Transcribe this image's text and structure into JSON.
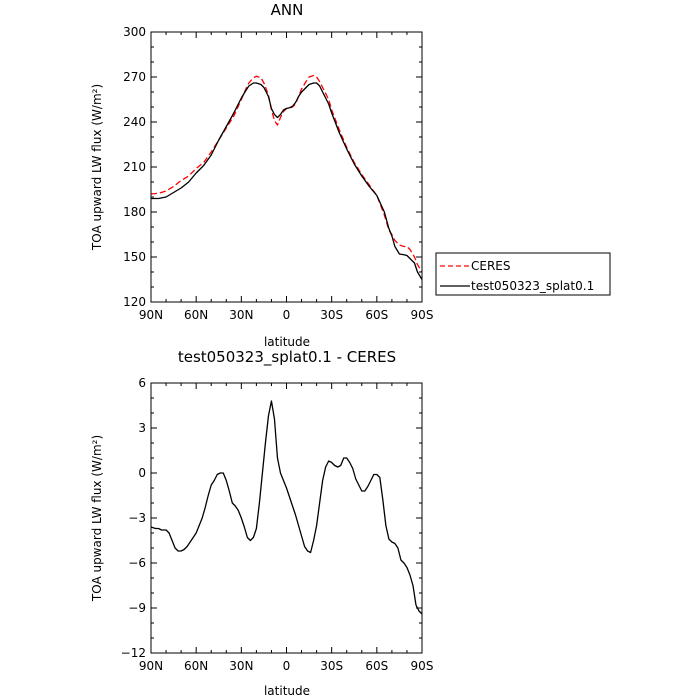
{
  "chart_data": [
    {
      "type": "line",
      "title": "ANN",
      "xlabel": "latitude",
      "ylabel": "TOA upward LW flux (W/m²)",
      "xlim": [
        90,
        -90
      ],
      "ylim": [
        120,
        300
      ],
      "yticks": [
        120,
        150,
        180,
        210,
        240,
        270,
        300
      ],
      "ytick_labels": [
        "120",
        "150",
        "180",
        "210",
        "240",
        "270",
        "300"
      ],
      "xticks": [
        90,
        60,
        30,
        0,
        -30,
        -60,
        -90
      ],
      "xtick_labels": [
        "90N",
        "60N",
        "30N",
        "0",
        "30S",
        "60S",
        "90S"
      ],
      "legend_position": "right",
      "series": [
        {
          "name": "CERES",
          "color": "#ff0000",
          "dash": "dashed",
          "x": [
            90,
            85,
            80,
            75,
            70,
            65,
            60,
            55,
            50,
            45,
            40,
            35,
            30,
            27,
            25,
            22,
            20,
            17,
            15,
            12,
            10,
            8,
            6,
            4,
            2,
            0,
            -2,
            -4,
            -6,
            -8,
            -10,
            -13,
            -15,
            -18,
            -20,
            -22,
            -25,
            -28,
            -30,
            -35,
            -40,
            -45,
            -50,
            -55,
            -60,
            -65,
            -68,
            -70,
            -72,
            -75,
            -78,
            -80,
            -82,
            -85,
            -87,
            -90
          ],
          "y": [
            192,
            192.5,
            194,
            197,
            201,
            204,
            209,
            213,
            220,
            228,
            236,
            244,
            255,
            262,
            266,
            269.5,
            270.5,
            269.5,
            266,
            258,
            248,
            241,
            238,
            243,
            247,
            249,
            249.5,
            250,
            252,
            257,
            262,
            267,
            270,
            271,
            270,
            267,
            261,
            255,
            248,
            235,
            223,
            213,
            205,
            198,
            191,
            178,
            168,
            165,
            161,
            158,
            157,
            157,
            155,
            150,
            145,
            140
          ]
        },
        {
          "name": "test050323_splat0.1",
          "color": "#000000",
          "dash": "solid",
          "x": [
            90,
            85,
            80,
            75,
            70,
            65,
            60,
            55,
            50,
            45,
            40,
            35,
            30,
            27,
            25,
            22,
            20,
            17,
            15,
            12,
            10,
            8,
            6,
            4,
            2,
            0,
            -2,
            -4,
            -6,
            -8,
            -10,
            -13,
            -15,
            -18,
            -20,
            -22,
            -25,
            -28,
            -30,
            -35,
            -40,
            -45,
            -50,
            -55,
            -60,
            -65,
            -68,
            -70,
            -72,
            -75,
            -78,
            -80,
            -82,
            -85,
            -87,
            -90
          ],
          "y": [
            189,
            189,
            190,
            193,
            196,
            200,
            206,
            211,
            218,
            228,
            237,
            246,
            256,
            261,
            264,
            266,
            266,
            265,
            263,
            257,
            249,
            245,
            243,
            245,
            248,
            249,
            249.5,
            250.5,
            253,
            257,
            260,
            263,
            265,
            266,
            266,
            264,
            258,
            252,
            246,
            233,
            222,
            212,
            204,
            197,
            191,
            180,
            169,
            164,
            157,
            152,
            151.5,
            151,
            149,
            146,
            140,
            135
          ]
        }
      ]
    },
    {
      "type": "line",
      "title": "test050323_splat0.1 - CERES",
      "xlabel": "latitude",
      "ylabel": "TOA upward LW flux (W/m²)",
      "xlim": [
        90,
        -90
      ],
      "ylim": [
        -12,
        6
      ],
      "yticks": [
        -12,
        -9,
        -6,
        -3,
        0,
        3,
        6
      ],
      "ytick_labels": [
        "−12",
        "−9",
        "−6",
        "−3",
        "0",
        "3",
        "6"
      ],
      "xticks": [
        90,
        60,
        30,
        0,
        -30,
        -60,
        -90
      ],
      "xtick_labels": [
        "90N",
        "60N",
        "30N",
        "0",
        "30S",
        "60S",
        "90S"
      ],
      "series": [
        {
          "color": "#000000",
          "dash": "solid",
          "x": [
            90,
            87,
            85,
            83,
            80,
            78,
            76,
            74,
            72,
            70,
            68,
            66,
            64,
            62,
            60,
            58,
            56,
            54,
            52,
            50,
            48,
            46,
            44,
            42,
            40,
            38,
            36,
            34,
            32,
            30,
            28,
            26,
            24,
            22,
            20,
            18,
            16,
            14,
            12,
            10,
            8,
            6,
            4,
            2,
            0,
            -2,
            -4,
            -6,
            -8,
            -10,
            -12,
            -14,
            -16,
            -18,
            -20,
            -22,
            -24,
            -26,
            -28,
            -30,
            -32,
            -34,
            -36,
            -38,
            -40,
            -42,
            -44,
            -46,
            -48,
            -50,
            -52,
            -54,
            -56,
            -58,
            -60,
            -62,
            -64,
            -66,
            -68,
            -70,
            -72,
            -74,
            -76,
            -78,
            -80,
            -82,
            -84,
            -86,
            -88,
            -90
          ],
          "y": [
            -3.6,
            -3.7,
            -3.7,
            -3.8,
            -3.8,
            -4.0,
            -4.5,
            -5.0,
            -5.2,
            -5.2,
            -5.1,
            -4.9,
            -4.6,
            -4.3,
            -4.0,
            -3.5,
            -3.0,
            -2.3,
            -1.5,
            -0.8,
            -0.5,
            -0.1,
            0.0,
            0.0,
            -0.5,
            -1.2,
            -2.0,
            -2.2,
            -2.5,
            -3.0,
            -3.6,
            -4.3,
            -4.5,
            -4.3,
            -3.7,
            -2.0,
            0.0,
            2.0,
            3.8,
            4.8,
            3.6,
            1.0,
            0.0,
            -0.5,
            -1.0,
            -1.6,
            -2.2,
            -2.8,
            -3.5,
            -4.2,
            -4.9,
            -5.2,
            -5.3,
            -4.5,
            -3.5,
            -2.0,
            -0.5,
            0.4,
            0.8,
            0.7,
            0.5,
            0.4,
            0.5,
            1.0,
            1.0,
            0.7,
            0.3,
            -0.4,
            -0.8,
            -1.2,
            -1.2,
            -0.9,
            -0.5,
            -0.1,
            -0.1,
            -0.3,
            -1.8,
            -3.5,
            -4.4,
            -4.6,
            -4.7,
            -5.0,
            -5.8,
            -6.0,
            -6.3,
            -6.8,
            -7.5,
            -8.8,
            -9.2,
            -9.4
          ]
        }
      ]
    }
  ]
}
